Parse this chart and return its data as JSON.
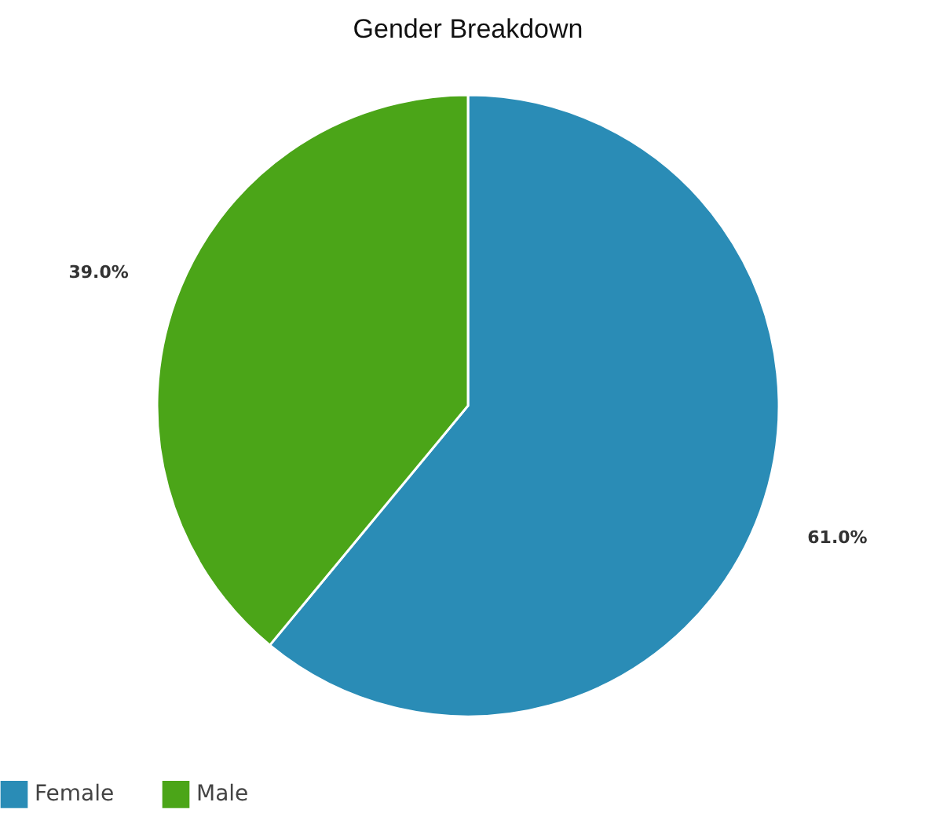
{
  "chart_data": {
    "type": "pie",
    "title": "Gender Breakdown",
    "categories": [
      "Female",
      "Male"
    ],
    "values": [
      61.0,
      39.0
    ],
    "colors": [
      "#2a8cb6",
      "#4ba518"
    ],
    "value_labels": [
      "61.0%",
      "39.0%"
    ],
    "legend": "bottom"
  }
}
